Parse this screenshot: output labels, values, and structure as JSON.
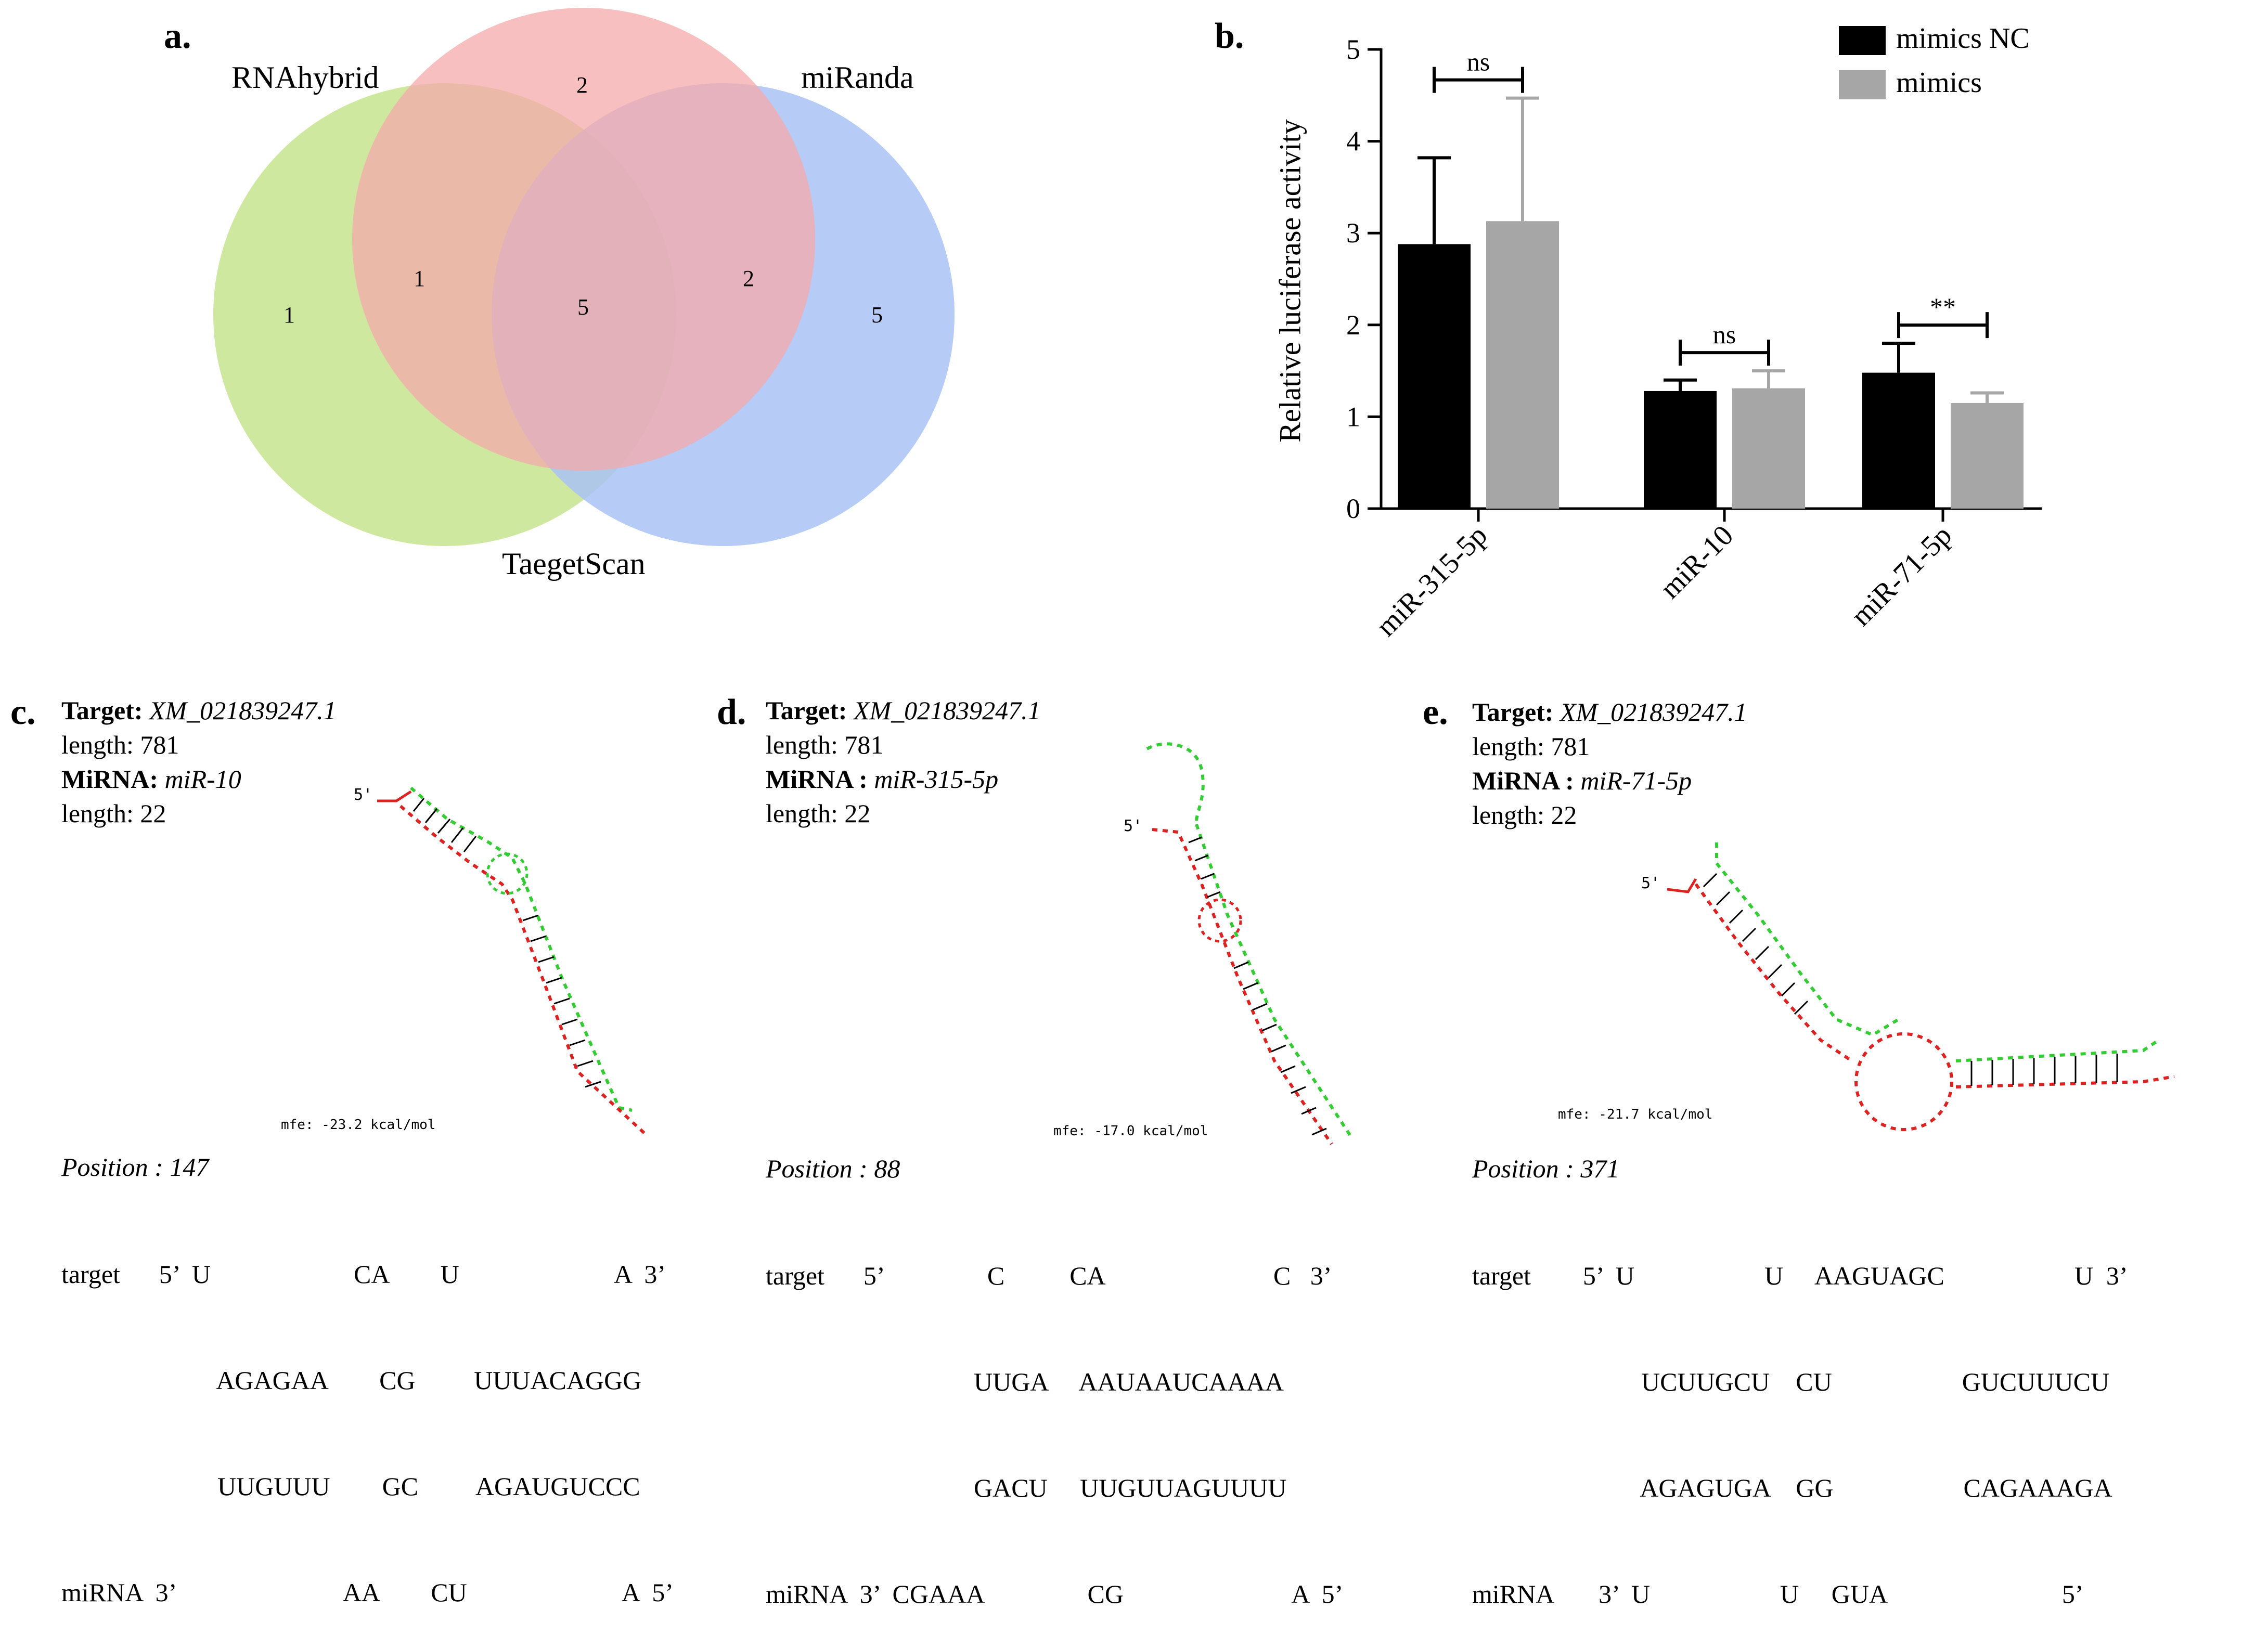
{
  "panel_a": {
    "letter": "a.",
    "labels": {
      "rnahybrid": "RNAhybrid",
      "miranda": "miRanda",
      "targetscan": "TaegetScan"
    },
    "counts": {
      "rnahybrid_only": "1",
      "targetscan_only": "2",
      "miranda_only": "5",
      "rna_ts": "1",
      "ts_mir": "2",
      "all": "5"
    },
    "colors": {
      "green": "#c6e48f",
      "red": "#f4b3b3",
      "blue": "#a9c2f3"
    }
  },
  "panel_b": {
    "letter": "b.",
    "chart_data": {
      "type": "bar",
      "ylabel": "Relative luciferase activity",
      "ylim": [
        0,
        5
      ],
      "yticks": [
        "0",
        "1",
        "2",
        "3",
        "4",
        "5"
      ],
      "categories": [
        "miR-315-5p",
        "miR-10",
        "miR-71-5p"
      ],
      "series": [
        {
          "name": "mimics NC",
          "color": "#000000",
          "values": [
            2.88,
            1.28,
            1.48
          ],
          "err": [
            0.94,
            0.12,
            0.32
          ]
        },
        {
          "name": "mimics",
          "color": "#a6a6a6",
          "values": [
            3.13,
            1.31,
            1.15
          ],
          "err": [
            1.34,
            0.19,
            0.11
          ]
        }
      ],
      "significance": [
        "ns",
        "ns",
        "**"
      ]
    }
  },
  "panel_c": {
    "letter": "c.",
    "target_label": "Target:",
    "target": "XM_021839247.1",
    "length1": "length: 781",
    "mirna_label": "MiRNA:",
    "mirna": "miR-10",
    "length2": "length: 22",
    "mfe": "mfe: -23.2 kcal/mol",
    "position": "Position : 147",
    "align": {
      "line1": "target      5’  U                      CA        U                        A  3’",
      "line2": "                        AGAGAA        CG         UUUACAGGG",
      "line3": "                        UUGUUU        GC         AGAUGUCCC",
      "line4": "miRNA  3’                          AA        CU                        A  5’"
    }
  },
  "panel_d": {
    "letter": "d.",
    "target_label": "Target:",
    "target": "XM_021839247.1",
    "length1": "length: 781",
    "mirna_label": "MiRNA :",
    "mirna": "miR-315-5p",
    "length2": "length: 22",
    "mfe": "mfe: -17.0 kcal/mol",
    "position": "Position : 88",
    "align": {
      "line1": "target      5’                C          CA                          C   3’",
      "line2": "                                UUGA     AAUAAUCAAAA",
      "line3": "                                GACU     UUGUUAGUUUU",
      "line4": "miRNA  3’  CGAAA                CG                          A  5’"
    }
  },
  "panel_e": {
    "letter": "e.",
    "target_label": "Target:",
    "target": "XM_021839247.1",
    "length1": "length: 781",
    "mirna_label": "MiRNA :",
    "mirna": "miR-71-5p",
    "length2": "length: 22",
    "mfe": "mfe: -21.7 kcal/mol",
    "position": "Position : 371",
    "align": {
      "line1": "target        5’  U                    U     AAGUAGC                    U  3’",
      "line2": "                          UCUUGCU    CU                    GUCUUUCU",
      "line3": "                          AGAGUGA    GG                    CAGAAAGA",
      "line4": "miRNA       3’  U                    U     GUA                           5’"
    }
  }
}
